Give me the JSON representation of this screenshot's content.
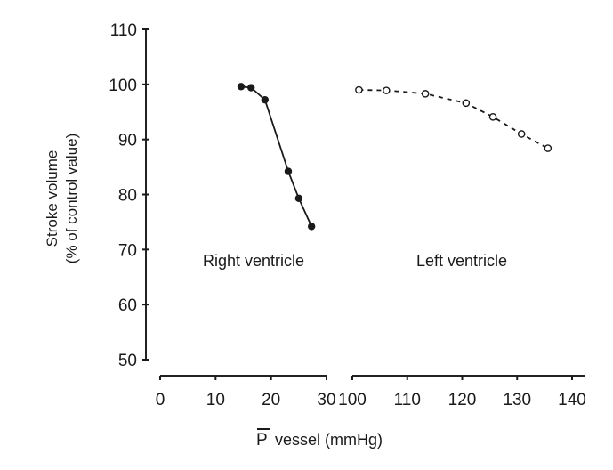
{
  "chart_data": {
    "type": "line",
    "title": "",
    "ylabel": "Stroke volume (% of control value)",
    "ylabel_lines": [
      "Stroke volume",
      "(% of control value)"
    ],
    "xlabel": "P vessel (mmHg)",
    "xlabel_symbol": "P",
    "xlabel_rest": " vessel (mmHg)",
    "ylim": [
      50,
      110
    ],
    "yticks": [
      50,
      60,
      70,
      80,
      90,
      100,
      110
    ],
    "broken_x_axis": true,
    "panels": [
      {
        "name": "Right ventricle",
        "xlim": [
          0,
          30
        ],
        "xticks": [
          0,
          10,
          20,
          30
        ]
      },
      {
        "name": "Left ventricle",
        "xlim": [
          100,
          140
        ],
        "xticks": [
          100,
          110,
          120,
          130,
          140
        ]
      }
    ],
    "series": [
      {
        "name": "Right ventricle",
        "panel": 0,
        "marker": "filled-circle",
        "line_style": "solid",
        "x": [
          14.6,
          16.4,
          18.9,
          23.1,
          25.0,
          27.3
        ],
        "values": [
          99.6,
          99.4,
          97.2,
          84.2,
          79.3,
          74.2
        ]
      },
      {
        "name": "Left ventricle",
        "panel": 1,
        "marker": "open-circle",
        "line_style": "dashed",
        "x": [
          101.2,
          106.2,
          113.3,
          120.7,
          125.6,
          130.8,
          135.6
        ],
        "values": [
          99.0,
          98.9,
          98.3,
          96.6,
          94.1,
          91.0,
          88.4
        ]
      }
    ],
    "grid": false,
    "legend": "none (series labeled inline)"
  },
  "labels": {
    "right_ventricle": "Right ventricle",
    "left_ventricle": "Left ventricle",
    "ylabel_line1": "Stroke volume",
    "ylabel_line2": "(% of control value)",
    "xlabel_symbol": "P",
    "xlabel_rest": " vessel (mmHg)"
  },
  "colors": {
    "ink": "#1a1a1a",
    "background": "#ffffff"
  }
}
